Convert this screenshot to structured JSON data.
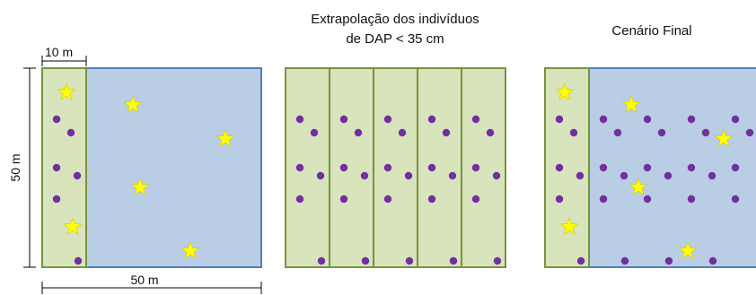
{
  "labels": {
    "dim_top": "10 m",
    "dim_side": "50 m",
    "dim_bottom": "50 m",
    "panel2_title_line1": "Extrapolação dos indivíduos",
    "panel2_title_line2": "de DAP < 35 cm",
    "panel3_title": "Cenário Final"
  },
  "colors": {
    "green_fill": "#d8e4bc",
    "green_stroke": "#77933c",
    "blue_fill": "#b9cde5",
    "blue_stroke": "#4f81bd",
    "dot": "#7030a0",
    "star": "#ffff00",
    "star_stroke": "#d9c400"
  },
  "legend_semantics": {
    "star": "star-marker",
    "dot": "dot-marker"
  }
}
